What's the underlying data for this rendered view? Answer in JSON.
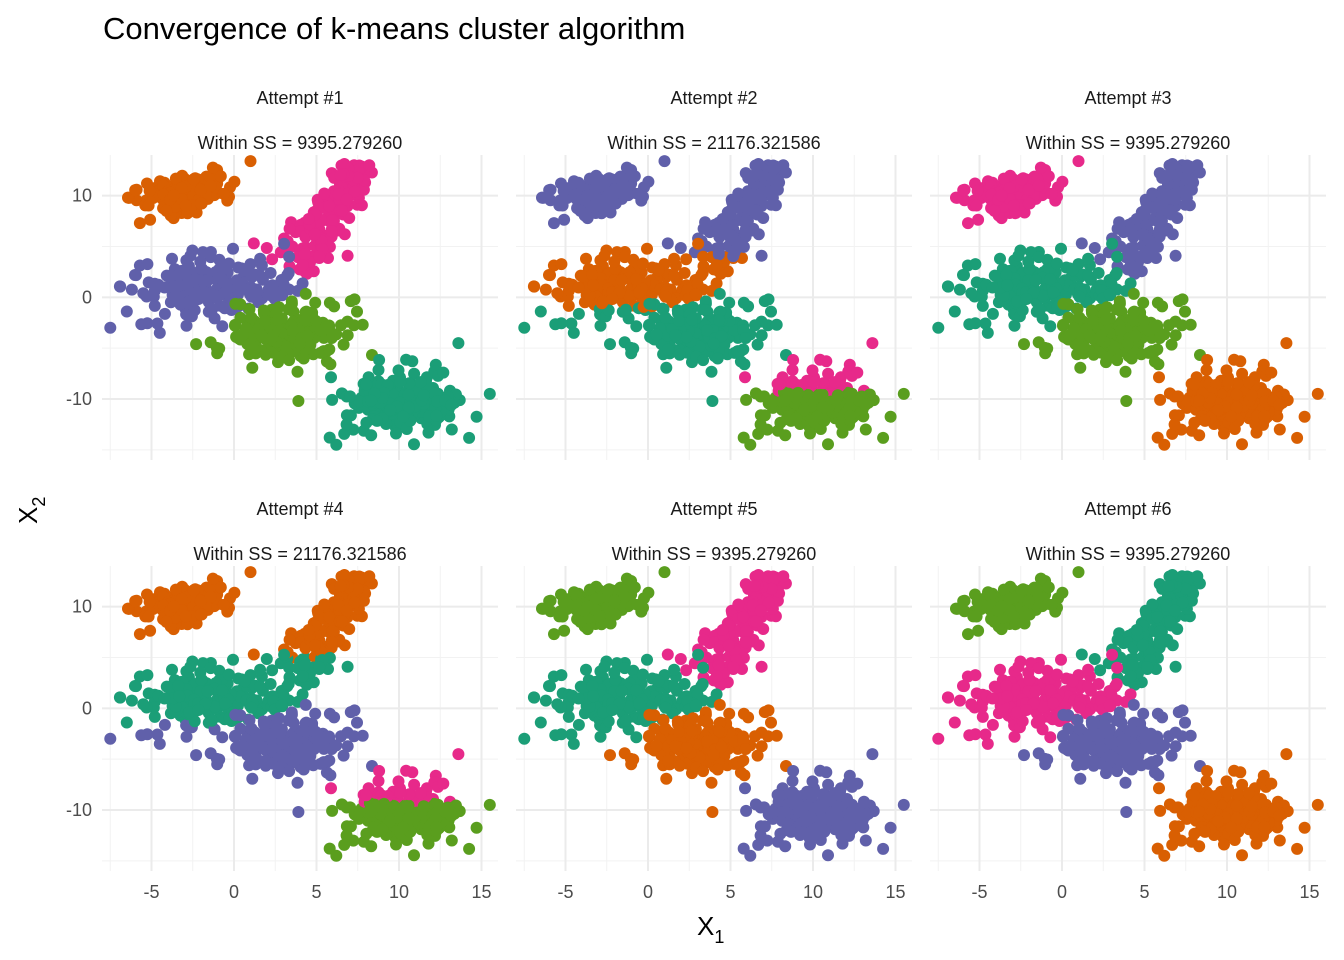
{
  "chart_data": {
    "type": "scatter",
    "title": "Convergence of k-means cluster algorithm",
    "xlabel": "X",
    "xlabel_sub": "1",
    "ylabel": "X",
    "ylabel_sub": "2",
    "xlim": [
      -8,
      16
    ],
    "ylim": [
      -16,
      14
    ],
    "x_ticks": [
      -5,
      0,
      5,
      10,
      15
    ],
    "x_tick_labels": [
      "-5",
      "0",
      "5",
      "10",
      "15"
    ],
    "y_ticks": [
      -10,
      0,
      10
    ],
    "y_tick_labels": [
      "-10",
      "0",
      "10"
    ],
    "grid": true,
    "legend": "none",
    "colors": {
      "green": "#5a9e1e",
      "teal": "#1b9e77",
      "orange": "#d95f02",
      "purple": "#6060aa",
      "pink": "#e7298a"
    },
    "blobs": {
      "A": {
        "type": "ellipse",
        "cx": -3,
        "cy": 10.3,
        "sx": 1.5,
        "sy": 0.9,
        "rot": 25,
        "n": 130,
        "outliers": [
          [
            1,
            13.4
          ],
          [
            -0.8,
            11.9
          ],
          [
            -5.7,
            7.3
          ]
        ]
      },
      "B": {
        "type": "segment",
        "x1": 3.6,
        "y1": 2.6,
        "x2": 7.5,
        "y2": 13,
        "width": 0.85,
        "n": 160,
        "outliers": [
          [
            8.2,
            13.0
          ],
          [
            4.9,
            6.2
          ],
          [
            1.2,
            5.3
          ]
        ]
      },
      "C": {
        "type": "ellipse",
        "cx": -1.2,
        "cy": 1,
        "sx": 2.2,
        "sy": 1.5,
        "rot": 10,
        "n": 200,
        "outliers": [
          [
            -7.5,
            -3
          ],
          [
            -6,
            2.2
          ],
          [
            -4.5,
            -3.5
          ],
          [
            -5.5,
            0.4
          ]
        ]
      },
      "D": {
        "type": "ellipse",
        "cx": 3.2,
        "cy": -3.4,
        "sx": 1.8,
        "sy": 1.5,
        "rot": 20,
        "n": 200,
        "outliers": [
          [
            -2.3,
            -4.6
          ],
          [
            7.3,
            -0.2
          ],
          [
            7.8,
            -2.7
          ],
          [
            3.9,
            -10.2
          ]
        ]
      },
      "E": {
        "type": "ellipse",
        "cx": 10.3,
        "cy": -10.3,
        "sx": 1.7,
        "sy": 1.6,
        "rot": 0,
        "n": 220,
        "outliers": [
          [
            5.8,
            -13.8
          ],
          [
            6.2,
            -14.5
          ],
          [
            15.5,
            -9.5
          ],
          [
            13.6,
            -4.5
          ],
          [
            13.2,
            -13
          ]
        ]
      }
    },
    "panels": [
      {
        "strip_title": "Attempt #1",
        "strip_subtitle": "Within SS = 9395.279260",
        "within_ss": 9395.27926,
        "assignments": [
          {
            "blob": "A",
            "color": "orange"
          },
          {
            "blob": "B",
            "color": "pink"
          },
          {
            "blob": "C",
            "color": "purple"
          },
          {
            "blob": "D",
            "color": "green"
          },
          {
            "blob": "E",
            "color": "teal"
          }
        ]
      },
      {
        "strip_title": "Attempt #2",
        "strip_subtitle": "Within SS = 21176.321586",
        "within_ss": 21176.321586,
        "assignments": [
          {
            "blob": "A",
            "color": "purple"
          },
          {
            "blob": "B",
            "color": "purple",
            "below_y": 4,
            "below_color": "orange"
          },
          {
            "blob": "C",
            "color": "orange",
            "below_y": -1,
            "below_color": "teal"
          },
          {
            "blob": "D",
            "color": "teal"
          },
          {
            "blob": "E",
            "color": "green",
            "above_y": -9.3,
            "above_color": "pink"
          }
        ]
      },
      {
        "strip_title": "Attempt #3",
        "strip_subtitle": "Within SS = 9395.279260",
        "within_ss": 9395.27926,
        "assignments": [
          {
            "blob": "A",
            "color": "pink"
          },
          {
            "blob": "B",
            "color": "purple"
          },
          {
            "blob": "C",
            "color": "teal"
          },
          {
            "blob": "D",
            "color": "green"
          },
          {
            "blob": "E",
            "color": "orange"
          }
        ]
      },
      {
        "strip_title": "Attempt #4",
        "strip_subtitle": "Within SS = 21176.321586",
        "within_ss": 21176.321586,
        "assignments": [
          {
            "blob": "A",
            "color": "orange"
          },
          {
            "blob": "B",
            "color": "orange",
            "below_y": 5,
            "below_color": "teal"
          },
          {
            "blob": "C",
            "color": "teal",
            "below_y": -1.5,
            "below_color": "purple"
          },
          {
            "blob": "D",
            "color": "purple"
          },
          {
            "blob": "E",
            "color": "green",
            "above_y": -9.3,
            "above_color": "pink"
          }
        ]
      },
      {
        "strip_title": "Attempt #5",
        "strip_subtitle": "Within SS = 9395.279260",
        "within_ss": 9395.27926,
        "assignments": [
          {
            "blob": "A",
            "color": "green"
          },
          {
            "blob": "B",
            "color": "pink"
          },
          {
            "blob": "C",
            "color": "teal"
          },
          {
            "blob": "D",
            "color": "orange"
          },
          {
            "blob": "E",
            "color": "purple"
          }
        ]
      },
      {
        "strip_title": "Attempt #6",
        "strip_subtitle": "Within SS = 9395.279260",
        "within_ss": 9395.27926,
        "assignments": [
          {
            "blob": "A",
            "color": "green"
          },
          {
            "blob": "B",
            "color": "teal"
          },
          {
            "blob": "C",
            "color": "pink"
          },
          {
            "blob": "D",
            "color": "purple"
          },
          {
            "blob": "E",
            "color": "orange"
          }
        ]
      }
    ]
  }
}
